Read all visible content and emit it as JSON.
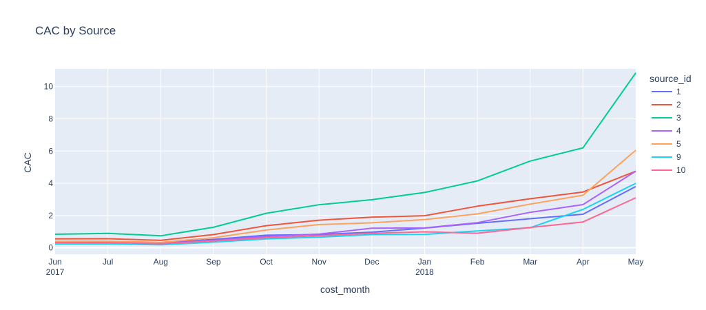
{
  "chart_data": {
    "type": "line",
    "title": "CAC by Source",
    "xlabel": "cost_month",
    "ylabel": "CAC",
    "x": [
      "2017-06",
      "2017-07",
      "2017-08",
      "2017-09",
      "2017-10",
      "2017-11",
      "2017-12",
      "2018-01",
      "2018-02",
      "2018-03",
      "2018-04",
      "2018-05"
    ],
    "x_tick_labels": [
      {
        "month": "Jun",
        "year": "2017"
      },
      {
        "month": "Jul",
        "year": ""
      },
      {
        "month": "Aug",
        "year": ""
      },
      {
        "month": "Sep",
        "year": ""
      },
      {
        "month": "Oct",
        "year": ""
      },
      {
        "month": "Nov",
        "year": ""
      },
      {
        "month": "Dec",
        "year": ""
      },
      {
        "month": "Jan",
        "year": "2018"
      },
      {
        "month": "Feb",
        "year": ""
      },
      {
        "month": "Mar",
        "year": ""
      },
      {
        "month": "Apr",
        "year": ""
      },
      {
        "month": "May",
        "year": ""
      }
    ],
    "ylim": [
      -0.4,
      11.1
    ],
    "y_ticks": [
      0,
      2,
      4,
      6,
      8,
      10
    ],
    "grid": true,
    "background": "#e5ecf6",
    "legend": {
      "title": "source_id",
      "position": "right"
    },
    "series": [
      {
        "name": "1",
        "color": "#636efa",
        "values": [
          0.37,
          0.38,
          0.32,
          0.52,
          0.78,
          0.82,
          0.97,
          1.22,
          1.52,
          1.8,
          2.08,
          3.8
        ]
      },
      {
        "name": "2",
        "color": "#EF553B",
        "values": [
          0.55,
          0.56,
          0.46,
          0.82,
          1.37,
          1.71,
          1.9,
          1.99,
          2.58,
          3.04,
          3.46,
          4.75
        ]
      },
      {
        "name": "3",
        "color": "#00cc96",
        "values": [
          0.84,
          0.89,
          0.74,
          1.27,
          2.14,
          2.67,
          2.98,
          3.43,
          4.15,
          5.38,
          6.2,
          10.85
        ]
      },
      {
        "name": "4",
        "color": "#ab63fa",
        "values": [
          0.36,
          0.37,
          0.28,
          0.46,
          0.7,
          0.85,
          1.21,
          1.23,
          1.56,
          2.2,
          2.68,
          4.75
        ]
      },
      {
        "name": "5",
        "color": "#FFA15A",
        "values": [
          0.4,
          0.41,
          0.34,
          0.62,
          1.1,
          1.44,
          1.55,
          1.75,
          2.1,
          2.71,
          3.26,
          6.05
        ]
      },
      {
        "name": "9",
        "color": "#19d3f3",
        "values": [
          0.23,
          0.24,
          0.18,
          0.35,
          0.55,
          0.66,
          0.82,
          0.83,
          1.04,
          1.24,
          2.38,
          4.0
        ]
      },
      {
        "name": "10",
        "color": "#FF6692",
        "values": [
          0.31,
          0.31,
          0.25,
          0.42,
          0.62,
          0.75,
          0.9,
          0.99,
          0.9,
          1.26,
          1.6,
          3.1
        ]
      }
    ]
  }
}
